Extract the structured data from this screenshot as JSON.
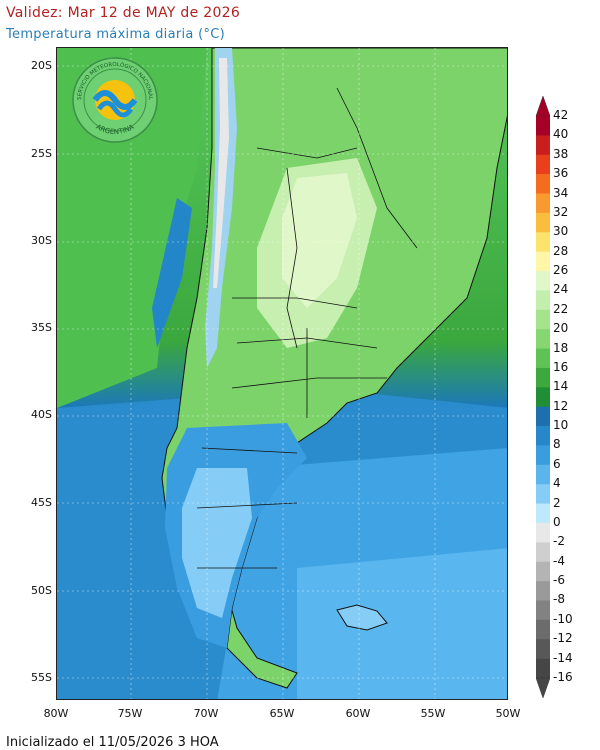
{
  "header": {
    "validity": "Validez: Mar 12 de MAY de 2026",
    "subtitle": "Temperatura máxima diaria (°C)"
  },
  "footer": {
    "initialized": "Inicializado el 11/05/2026 3 HOA"
  },
  "logo": {
    "top_text": "SERVICIO METEOROLÓGICO NACIONAL",
    "bottom_text": "ARGENTINA"
  },
  "map": {
    "lat_labels": [
      "20S",
      "25S",
      "30S",
      "35S",
      "40S",
      "45S",
      "50S",
      "55S"
    ],
    "lon_labels": [
      "80W",
      "75W",
      "70W",
      "65W",
      "60W",
      "55W",
      "50W"
    ]
  },
  "legend": {
    "labels": [
      "42",
      "40",
      "38",
      "36",
      "34",
      "32",
      "30",
      "28",
      "26",
      "24",
      "22",
      "20",
      "18",
      "16",
      "14",
      "12",
      "10",
      "8",
      "6",
      "4",
      "2",
      "0",
      "-2",
      "-4",
      "-6",
      "-8",
      "-10",
      "-12",
      "-14",
      "-16"
    ],
    "colors": [
      "#a50026",
      "#c81e1e",
      "#e8401c",
      "#f46d1f",
      "#f89a2e",
      "#fbbd3e",
      "#fde36b",
      "#fff6a8",
      "#e0f7c9",
      "#c2efae",
      "#a6e38d",
      "#86d672",
      "#5fc255",
      "#3ca83d",
      "#1f8e35",
      "#1d6fae",
      "#2887c9",
      "#3a9de0",
      "#5bb4ec",
      "#85cdf6",
      "#bde9fb",
      "#e8e8e8",
      "#cfcfcf",
      "#b4b4b4",
      "#9a9a9a",
      "#828282",
      "#6c6c6c",
      "#585858",
      "#464646"
    ]
  }
}
